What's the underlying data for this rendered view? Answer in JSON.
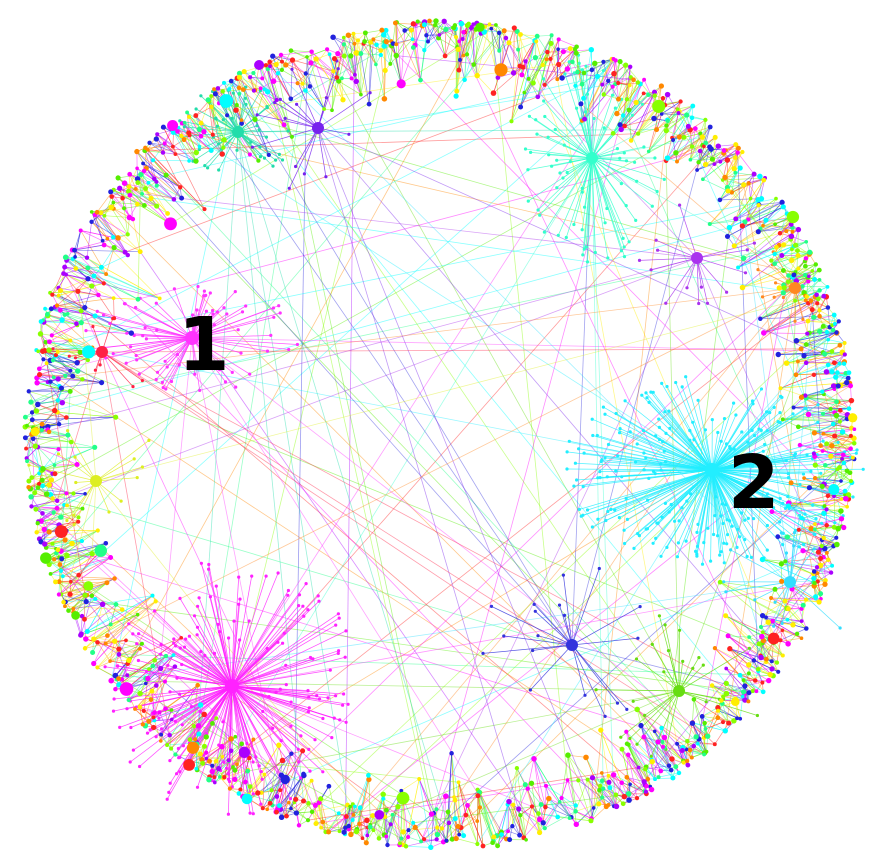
{
  "diagram": {
    "type": "force-directed network graph",
    "shape": "circular",
    "background": "#ffffff",
    "palette": [
      "#ff00ff",
      "#00ffff",
      "#2222dd",
      "#55ee00",
      "#ff2222",
      "#ffee00",
      "#ff8800",
      "#22ff88",
      "#aa00ff",
      "#88ff00"
    ],
    "hubs": [
      {
        "name": "hub-1",
        "label": "1",
        "color": "#ff33ff",
        "spokes": 70
      },
      {
        "name": "hub-2",
        "label": "2",
        "color": "#22eeff",
        "spokes": 240
      },
      {
        "name": "hub-magenta-lower",
        "color": "#ff22ff",
        "spokes": 170
      },
      {
        "name": "hub-aqua-top",
        "color": "#33ffcc",
        "spokes": 80
      },
      {
        "name": "hub-teal-topleft",
        "color": "#22ddaa",
        "spokes": 45
      },
      {
        "name": "hub-blue-center",
        "color": "#3333dd",
        "spokes": 18
      },
      {
        "name": "hub-green-lower-right",
        "color": "#66dd11",
        "spokes": 24
      },
      {
        "name": "hub-purple-top",
        "color": "#7722ee",
        "spokes": 16
      },
      {
        "name": "hub-purple-right",
        "color": "#aa33ee",
        "spokes": 14
      },
      {
        "name": "hub-yellow-left",
        "color": "#ddee22",
        "spokes": 14
      },
      {
        "name": "hub-cyan-right-low",
        "color": "#33ddff",
        "spokes": 16
      },
      {
        "name": "hub-orange-right",
        "color": "#ff8822",
        "spokes": 10
      },
      {
        "name": "hub-red-left",
        "color": "#ff2244",
        "spokes": 10
      }
    ]
  }
}
